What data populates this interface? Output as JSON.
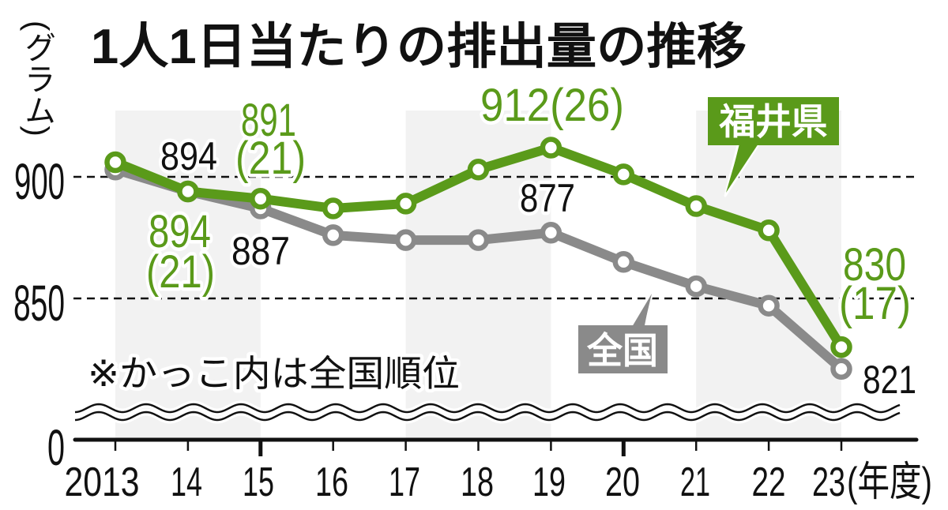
{
  "title": "1人1日当たりの排出量の推移",
  "y_unit": "(グラム)",
  "x_unit": "(年度)",
  "note": "※かっこ内は全国順位",
  "y_ticks": {
    "t900": "900",
    "t850": "850",
    "t0": "0"
  },
  "x_ticks": [
    "2013",
    "14",
    "15",
    "16",
    "17",
    "18",
    "19",
    "20",
    "21",
    "22",
    "23"
  ],
  "legend": {
    "fukui": "福井県",
    "national": "全国"
  },
  "colors": {
    "fukui": "#5a9a1a",
    "national": "#8a8a8a",
    "stripe": "#f2f2f2",
    "text": "#111111"
  },
  "annotations": {
    "fukui_2014": {
      "value": "894",
      "rank": "(21)"
    },
    "fukui_2015": {
      "value": "891",
      "rank": "(21)"
    },
    "fukui_2019": {
      "value_rank": "912(26)"
    },
    "fukui_2023": {
      "value": "830",
      "rank": "(17)"
    },
    "national_2014": "894",
    "national_2015": "887",
    "national_2019": "877",
    "national_2023": "821"
  },
  "chart_data": {
    "type": "line",
    "title": "1人1日当たりの排出量の推移",
    "xlabel": "(年度)",
    "ylabel": "(グラム)",
    "categories": [
      "2013",
      "14",
      "15",
      "16",
      "17",
      "18",
      "19",
      "20",
      "21",
      "22",
      "23"
    ],
    "x": [
      2013,
      2014,
      2015,
      2016,
      2017,
      2018,
      2019,
      2020,
      2021,
      2022,
      2023
    ],
    "series": [
      {
        "name": "福井県",
        "color": "#5a9a1a",
        "values": [
          906,
          894,
          891,
          887,
          889,
          903,
          912,
          901,
          888,
          878,
          830
        ],
        "labeled": {
          "2014": "894 (21)",
          "2015": "891 (21)",
          "2019": "912 (26)",
          "2023": "830 (17)"
        },
        "national_rank": {
          "2014": 21,
          "2015": 21,
          "2019": 26,
          "2023": 17
        }
      },
      {
        "name": "全国",
        "color": "#8a8a8a",
        "values": [
          903,
          894,
          887,
          876,
          874,
          874,
          877,
          865,
          855,
          847,
          821
        ],
        "labeled": {
          "2014": "894",
          "2015": "887",
          "2019": "877",
          "2023": "821"
        }
      }
    ],
    "yticks": [
      0,
      850,
      900
    ],
    "ylim": [
      0,
      915
    ],
    "axis_break": "between 0 and ~815 (wavy break lines)",
    "grid": "dashed horizontal lines at 850 and 900",
    "background": "alternating light-gray vertical bands every two fiscal years",
    "legend_position": "callout boxes (福井県 upper right, 全国 lower middle)",
    "annotations": [
      "※かっこ内は全国順位"
    ]
  }
}
